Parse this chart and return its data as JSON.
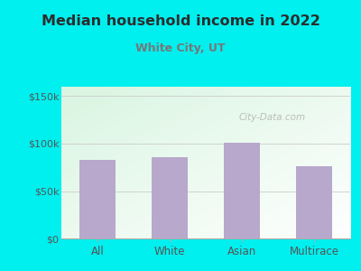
{
  "title": "Median household income in 2022",
  "subtitle": "White City, UT",
  "categories": [
    "All",
    "White",
    "Asian",
    "Multirace"
  ],
  "values": [
    83000,
    86000,
    101000,
    76000
  ],
  "bar_color": "#b8a8cc",
  "background_outer": "#00efef",
  "title_color": "#2d2d2d",
  "subtitle_color": "#777777",
  "tick_label_color": "#555555",
  "yticks": [
    0,
    50000,
    100000,
    150000
  ],
  "ytick_labels": [
    "$0",
    "$50k",
    "$100k",
    "$150k"
  ],
  "ylim": [
    0,
    160000
  ],
  "watermark": "City-Data.com"
}
